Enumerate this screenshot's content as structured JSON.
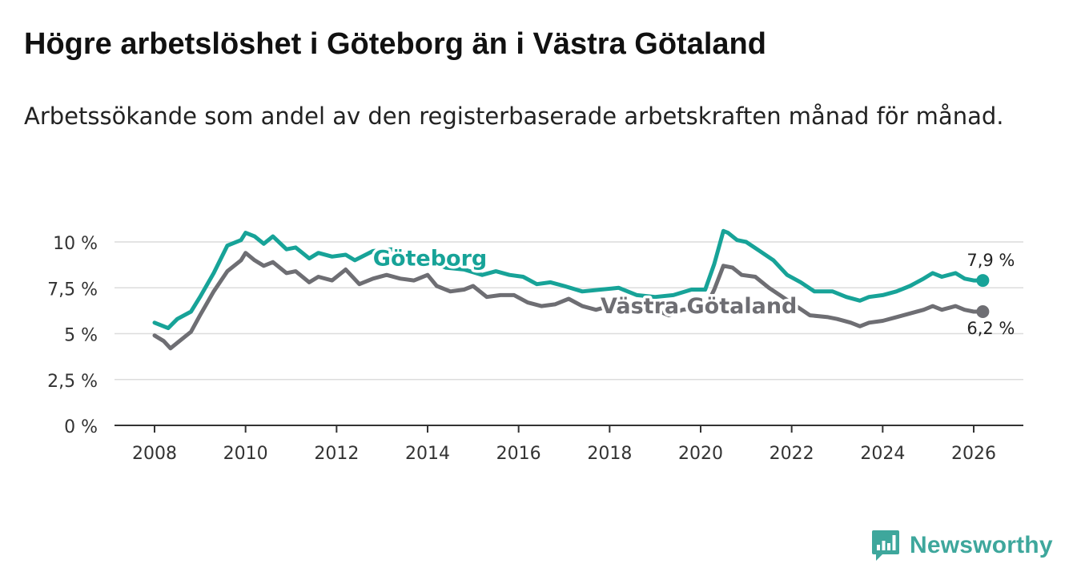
{
  "title": "Högre arbetslöshet i Göteborg än i Västra Götaland",
  "subtitle": "Arbetssökande som andel av den registerbaserade arbetskraften månad för månad.",
  "brand": {
    "name": "Newsworthy",
    "color": "#3ea79c",
    "icon": "newsworthy-logo-icon"
  },
  "chart_data": {
    "type": "line",
    "title": "Högre arbetslöshet i Göteborg än i Västra Götaland",
    "xlabel": "",
    "ylabel": "",
    "xlim": [
      2007.7,
      2027.0
    ],
    "ylim": [
      0,
      10
    ],
    "grid": true,
    "x_ticks": [
      2008,
      2010,
      2012,
      2014,
      2016,
      2018,
      2020,
      2022,
      2024,
      2026
    ],
    "x_tick_labels": [
      "2008",
      "2010",
      "2012",
      "2014",
      "2016",
      "2018",
      "2020",
      "2022",
      "2024",
      "2026"
    ],
    "y_ticks": [
      0,
      2.5,
      5,
      7.5,
      10
    ],
    "y_tick_labels": [
      "0 %",
      "2,5 %",
      "5 %",
      "7,5 %",
      "10 %"
    ],
    "series": [
      {
        "name": "Göteborg",
        "color": "#17a398",
        "end_label": "7,9 %",
        "points": [
          [
            2008.0,
            5.6
          ],
          [
            2008.3,
            5.3
          ],
          [
            2008.5,
            5.8
          ],
          [
            2008.8,
            6.2
          ],
          [
            2009.0,
            7.0
          ],
          [
            2009.3,
            8.3
          ],
          [
            2009.6,
            9.8
          ],
          [
            2009.9,
            10.1
          ],
          [
            2010.0,
            10.5
          ],
          [
            2010.2,
            10.3
          ],
          [
            2010.4,
            9.9
          ],
          [
            2010.6,
            10.3
          ],
          [
            2010.9,
            9.6
          ],
          [
            2011.1,
            9.7
          ],
          [
            2011.4,
            9.1
          ],
          [
            2011.6,
            9.4
          ],
          [
            2011.9,
            9.2
          ],
          [
            2012.2,
            9.3
          ],
          [
            2012.4,
            9.0
          ],
          [
            2012.8,
            9.5
          ],
          [
            2013.2,
            9.6
          ],
          [
            2013.6,
            9.3
          ],
          [
            2014.0,
            9.0
          ],
          [
            2014.4,
            8.6
          ],
          [
            2014.8,
            8.5
          ],
          [
            2015.2,
            8.2
          ],
          [
            2015.5,
            8.4
          ],
          [
            2015.8,
            8.2
          ],
          [
            2016.1,
            8.1
          ],
          [
            2016.4,
            7.7
          ],
          [
            2016.7,
            7.8
          ],
          [
            2017.0,
            7.6
          ],
          [
            2017.4,
            7.3
          ],
          [
            2017.8,
            7.4
          ],
          [
            2018.2,
            7.5
          ],
          [
            2018.6,
            7.1
          ],
          [
            2019.0,
            7.0
          ],
          [
            2019.4,
            7.1
          ],
          [
            2019.8,
            7.4
          ],
          [
            2020.1,
            7.4
          ],
          [
            2020.3,
            8.8
          ],
          [
            2020.5,
            10.6
          ],
          [
            2020.6,
            10.5
          ],
          [
            2020.8,
            10.1
          ],
          [
            2021.0,
            10.0
          ],
          [
            2021.3,
            9.5
          ],
          [
            2021.6,
            9.0
          ],
          [
            2021.9,
            8.2
          ],
          [
            2022.2,
            7.8
          ],
          [
            2022.5,
            7.3
          ],
          [
            2022.9,
            7.3
          ],
          [
            2023.2,
            7.0
          ],
          [
            2023.5,
            6.8
          ],
          [
            2023.7,
            7.0
          ],
          [
            2024.0,
            7.1
          ],
          [
            2024.3,
            7.3
          ],
          [
            2024.6,
            7.6
          ],
          [
            2024.9,
            8.0
          ],
          [
            2025.1,
            8.3
          ],
          [
            2025.3,
            8.1
          ],
          [
            2025.6,
            8.3
          ],
          [
            2025.8,
            8.0
          ],
          [
            2026.0,
            7.9
          ],
          [
            2026.2,
            7.9
          ]
        ]
      },
      {
        "name": "Västra Götaland",
        "color": "#6e6e73",
        "end_label": "6,2 %",
        "points": [
          [
            2008.0,
            4.9
          ],
          [
            2008.2,
            4.6
          ],
          [
            2008.35,
            4.2
          ],
          [
            2008.5,
            4.5
          ],
          [
            2008.8,
            5.1
          ],
          [
            2009.0,
            6.0
          ],
          [
            2009.3,
            7.3
          ],
          [
            2009.6,
            8.4
          ],
          [
            2009.9,
            9.0
          ],
          [
            2010.0,
            9.4
          ],
          [
            2010.2,
            9.0
          ],
          [
            2010.4,
            8.7
          ],
          [
            2010.6,
            8.9
          ],
          [
            2010.9,
            8.3
          ],
          [
            2011.1,
            8.4
          ],
          [
            2011.4,
            7.8
          ],
          [
            2011.6,
            8.1
          ],
          [
            2011.9,
            7.9
          ],
          [
            2012.2,
            8.5
          ],
          [
            2012.5,
            7.7
          ],
          [
            2012.8,
            8.0
          ],
          [
            2013.1,
            8.2
          ],
          [
            2013.4,
            8.0
          ],
          [
            2013.7,
            7.9
          ],
          [
            2014.0,
            8.2
          ],
          [
            2014.2,
            7.6
          ],
          [
            2014.5,
            7.3
          ],
          [
            2014.8,
            7.4
          ],
          [
            2015.0,
            7.6
          ],
          [
            2015.3,
            7.0
          ],
          [
            2015.6,
            7.1
          ],
          [
            2015.9,
            7.1
          ],
          [
            2016.2,
            6.7
          ],
          [
            2016.5,
            6.5
          ],
          [
            2016.8,
            6.6
          ],
          [
            2017.1,
            6.9
          ],
          [
            2017.4,
            6.5
          ],
          [
            2017.7,
            6.3
          ],
          [
            2018.0,
            6.5
          ],
          [
            2018.3,
            6.2
          ],
          [
            2018.6,
            6.2
          ],
          [
            2019.0,
            6.3
          ],
          [
            2019.3,
            6.0
          ],
          [
            2019.6,
            6.3
          ],
          [
            2019.9,
            6.4
          ],
          [
            2020.1,
            6.4
          ],
          [
            2020.3,
            7.4
          ],
          [
            2020.5,
            8.7
          ],
          [
            2020.7,
            8.6
          ],
          [
            2020.9,
            8.2
          ],
          [
            2021.2,
            8.1
          ],
          [
            2021.5,
            7.5
          ],
          [
            2021.8,
            7.0
          ],
          [
            2022.1,
            6.5
          ],
          [
            2022.4,
            6.0
          ],
          [
            2022.8,
            5.9
          ],
          [
            2023.0,
            5.8
          ],
          [
            2023.3,
            5.6
          ],
          [
            2023.5,
            5.4
          ],
          [
            2023.7,
            5.6
          ],
          [
            2024.0,
            5.7
          ],
          [
            2024.3,
            5.9
          ],
          [
            2024.6,
            6.1
          ],
          [
            2024.9,
            6.3
          ],
          [
            2025.1,
            6.5
          ],
          [
            2025.3,
            6.3
          ],
          [
            2025.6,
            6.5
          ],
          [
            2025.8,
            6.3
          ],
          [
            2026.0,
            6.2
          ],
          [
            2026.2,
            6.2
          ]
        ]
      }
    ]
  }
}
